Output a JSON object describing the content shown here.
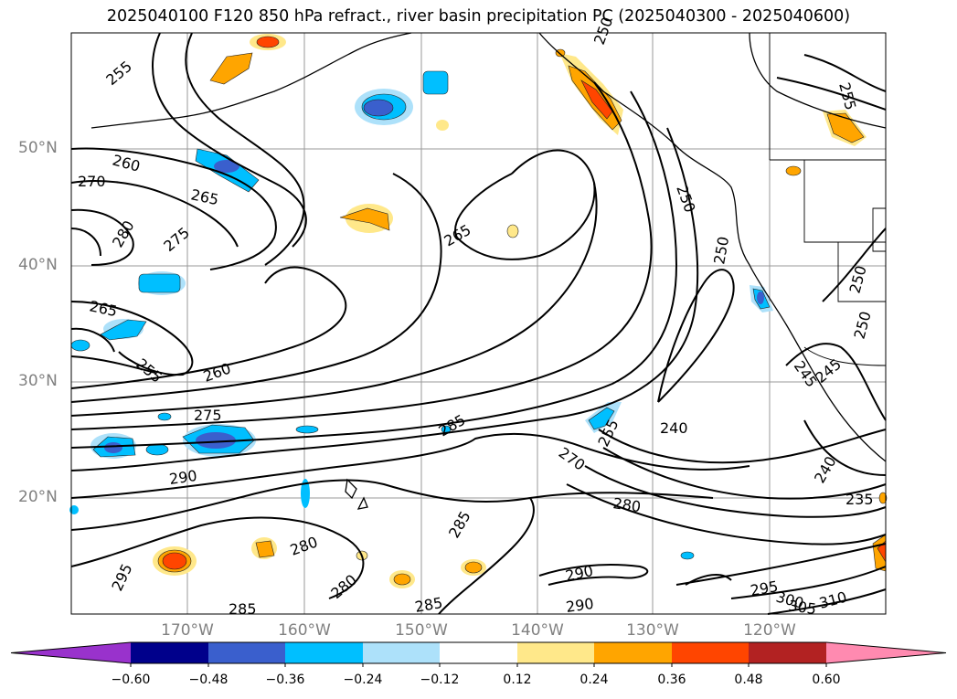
{
  "title": "2025040100 F120 850 hPa refract., river basin precipitation PC (2025040300 - 2025040600)",
  "lat_labels": [
    {
      "label": "50°N",
      "lat": 50
    },
    {
      "label": "40°N",
      "lat": 40
    },
    {
      "label": "30°N",
      "lat": 30
    },
    {
      "label": "20°N",
      "lat": 20
    }
  ],
  "lon_labels": [
    {
      "label": "170°W",
      "lon": -170
    },
    {
      "label": "160°W",
      "lon": -160
    },
    {
      "label": "150°W",
      "lon": -150
    },
    {
      "label": "140°W",
      "lon": -140
    },
    {
      "label": "130°W",
      "lon": -130
    },
    {
      "label": "120°W",
      "lon": -120
    }
  ],
  "contour_labels": [
    "255",
    "260",
    "270",
    "265",
    "280",
    "275",
    "265",
    "255",
    "260",
    "275",
    "290",
    "295",
    "285",
    "280",
    "280",
    "285",
    "265",
    "285",
    "285",
    "290",
    "290",
    "270",
    "255",
    "240",
    "280",
    "250",
    "250",
    "250",
    "245",
    "245",
    "240",
    "235",
    "295",
    "300",
    "305",
    "310",
    "255",
    "250",
    "250"
  ],
  "colorbar": {
    "ticks": [
      "−0.60",
      "−0.48",
      "−0.36",
      "−0.24",
      "−0.12",
      "0.12",
      "0.24",
      "0.36",
      "0.48",
      "0.60"
    ],
    "colors": [
      "#9932CC",
      "#00008B",
      "#3A5FCD",
      "#00BFFF",
      "#ADE1FA",
      "#FFFFFF",
      "#FFE88A",
      "#FFA500",
      "#FF4500",
      "#B22222",
      "#FF8AB0"
    ]
  },
  "shading_colors": {
    "light_blue": "#ADE1FA",
    "blue": "#00BFFF",
    "royal": "#3A5FCD",
    "yellow": "#FFE88A",
    "orange": "#FFA500",
    "red_orange": "#FF4500"
  }
}
